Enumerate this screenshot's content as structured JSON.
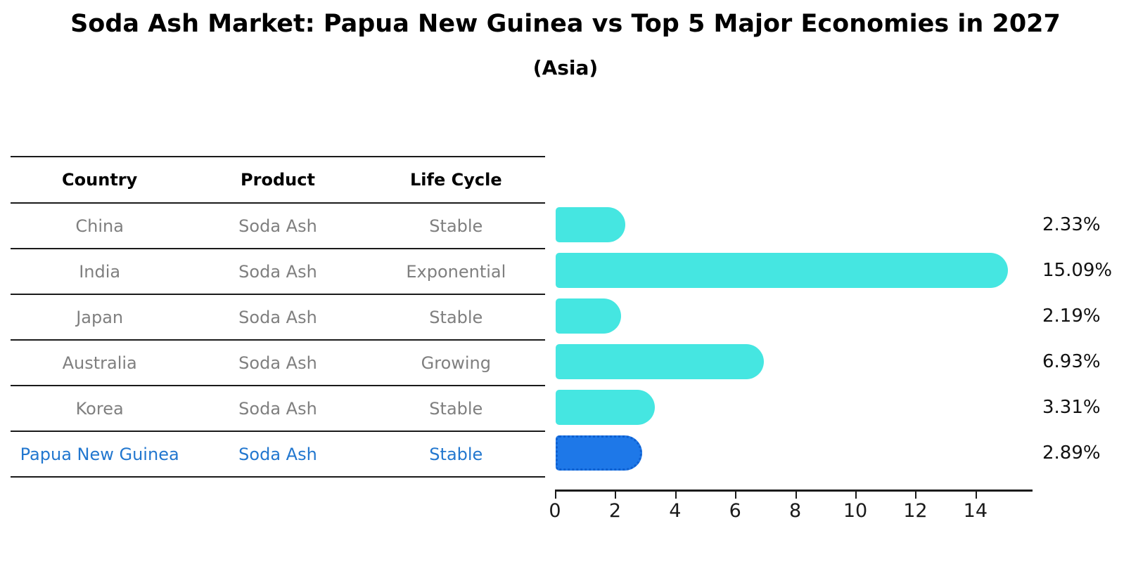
{
  "title": "Soda Ash Market: Papua New Guinea vs Top 5 Major Economies in 2027",
  "subtitle": "(Asia)",
  "table": {
    "headers": [
      "Country",
      "Product",
      "Life Cycle"
    ],
    "rows": [
      {
        "country": "China",
        "product": "Soda Ash",
        "life_cycle": "Stable",
        "highlight": false
      },
      {
        "country": "India",
        "product": "Soda Ash",
        "life_cycle": "Exponential",
        "highlight": false
      },
      {
        "country": "Japan",
        "product": "Soda Ash",
        "life_cycle": "Stable",
        "highlight": false
      },
      {
        "country": "Australia",
        "product": "Soda Ash",
        "life_cycle": "Growing",
        "highlight": false
      },
      {
        "country": "Korea",
        "product": "Soda Ash",
        "life_cycle": "Stable",
        "highlight": false
      },
      {
        "country": "Papua New Guinea",
        "product": "Soda Ash",
        "life_cycle": "Stable",
        "highlight": true
      }
    ]
  },
  "chart_data": {
    "type": "bar",
    "orientation": "horizontal",
    "title": "Soda Ash Market: Papua New Guinea vs Top 5 Major Economies in 2027",
    "subtitle": "(Asia)",
    "categories": [
      "China",
      "India",
      "Japan",
      "Australia",
      "Korea",
      "Papua New Guinea"
    ],
    "values": [
      2.33,
      15.09,
      2.19,
      6.93,
      3.31,
      2.89
    ],
    "value_labels": [
      "2.33%",
      "15.09%",
      "2.19%",
      "6.93%",
      "3.31%",
      "2.89%"
    ],
    "x_ticks": [
      0,
      2,
      4,
      6,
      8,
      10,
      12,
      14
    ],
    "xlim": [
      0,
      15.9
    ],
    "grid": false,
    "legend": "none",
    "bar_color": "#45e6e1",
    "highlight_index": 5,
    "highlight_bar_color": "#1e78e8",
    "highlight_border_color": "#0e5fd0",
    "highlight_text_color": "#2277cf"
  }
}
